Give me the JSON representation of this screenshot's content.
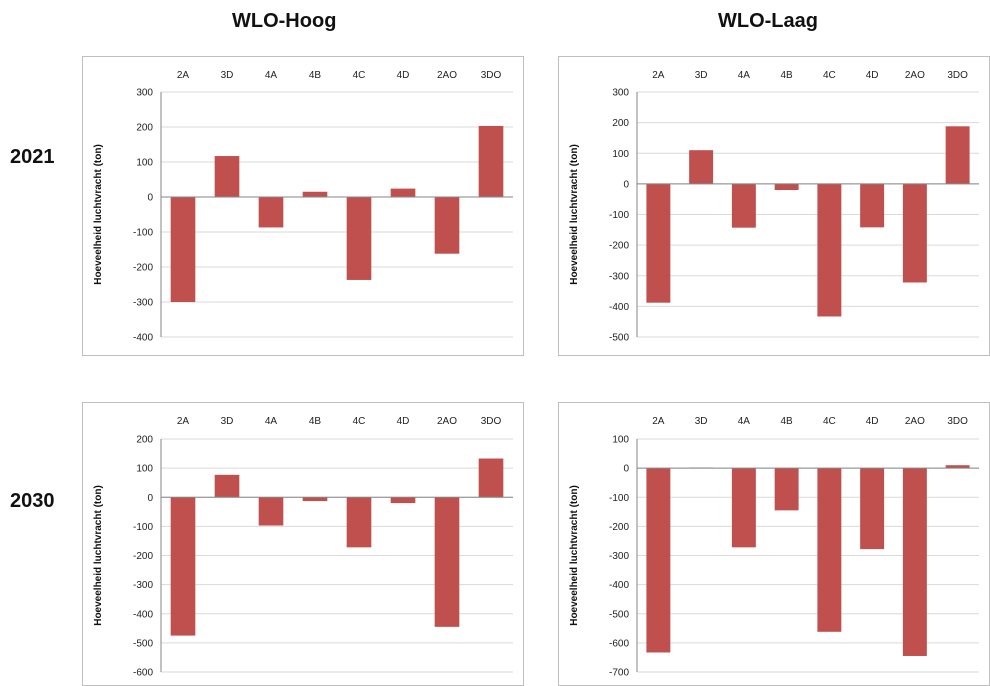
{
  "columns": [
    "WLO-Hoog",
    "WLO-Laag"
  ],
  "rows": [
    "2021",
    "2030"
  ],
  "bar_color": "#c0504d",
  "chart_data": [
    {
      "type": "bar",
      "title": "WLO-Hoog",
      "row": "2021",
      "categories": [
        "2A",
        "3D",
        "4A",
        "4B",
        "4C",
        "4D",
        "2AO",
        "3DO"
      ],
      "values": [
        -300,
        117,
        -87,
        15,
        -237,
        24,
        -162,
        203
      ],
      "ylabel": "Hoeveelheid luchtvracht (ton)",
      "ylim": [
        -400,
        300
      ],
      "yticks": [
        300,
        200,
        100,
        0,
        -100,
        -200,
        -300,
        -400
      ],
      "grid": true
    },
    {
      "type": "bar",
      "title": "WLO-Laag",
      "row": "2021",
      "categories": [
        "2A",
        "3D",
        "4A",
        "4B",
        "4C",
        "4D",
        "2AO",
        "3DO"
      ],
      "values": [
        -388,
        110,
        -143,
        -20,
        -433,
        -142,
        -322,
        188
      ],
      "ylabel": "Hoeveelheid luchtvracht (ton)",
      "ylim": [
        -500,
        300
      ],
      "yticks": [
        300,
        200,
        100,
        0,
        -100,
        -200,
        -300,
        -400,
        -500
      ],
      "grid": true
    },
    {
      "type": "bar",
      "title": "WLO-Hoog",
      "row": "2030",
      "categories": [
        "2A",
        "3D",
        "4A",
        "4B",
        "4C",
        "4D",
        "2AO",
        "3DO"
      ],
      "values": [
        -475,
        77,
        -97,
        -13,
        -172,
        -20,
        -445,
        133
      ],
      "ylabel": "Hoeveelheid luchtvracht (ton)",
      "ylim": [
        -600,
        200
      ],
      "yticks": [
        200,
        100,
        0,
        -100,
        -200,
        -300,
        -400,
        -500,
        -600
      ],
      "grid": true
    },
    {
      "type": "bar",
      "title": "WLO-Laag",
      "row": "2030",
      "categories": [
        "2A",
        "3D",
        "4A",
        "4B",
        "4C",
        "4D",
        "2AO",
        "3DO"
      ],
      "values": [
        -633,
        2,
        -272,
        -145,
        -562,
        -278,
        -645,
        10
      ],
      "ylabel": "Hoeveelheid luchtvracht (ton)",
      "ylim": [
        -700,
        100
      ],
      "yticks": [
        100,
        0,
        -100,
        -200,
        -300,
        -400,
        -500,
        -600,
        -700
      ],
      "grid": true
    }
  ]
}
